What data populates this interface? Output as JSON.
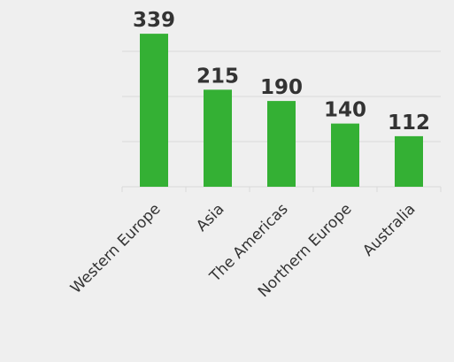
{
  "chart_data": {
    "type": "bar",
    "categories": [
      "Western Europe",
      "Asia",
      "The Americas",
      "Northern Europe",
      "Australia"
    ],
    "values": [
      339,
      215,
      190,
      140,
      112
    ],
    "color": "#34b034",
    "ylim": [
      0,
      350
    ],
    "yticks": [
      0,
      100,
      200,
      300
    ],
    "grid": true
  }
}
